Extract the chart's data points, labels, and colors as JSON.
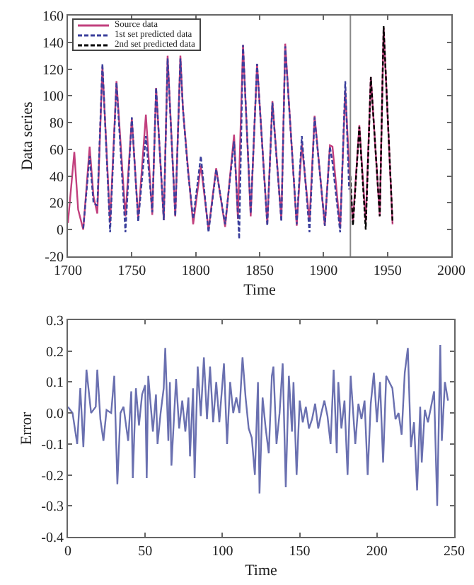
{
  "chart_data": [
    {
      "type": "line",
      "xlabel": "Time",
      "ylabel": "Data series",
      "xlim": [
        1700,
        2000
      ],
      "xticks": [
        1700,
        1750,
        1800,
        1850,
        1900,
        1950,
        2000
      ],
      "ylim": [
        -20,
        160
      ],
      "yticks": [
        -20,
        0,
        20,
        40,
        60,
        80,
        100,
        120,
        140,
        160
      ],
      "legend": "top left",
      "ref_lines": [
        {
          "axis": "x",
          "value": 1921,
          "color": "#888888"
        }
      ],
      "series": [
        {
          "name": "Source data",
          "color": "#c2407e",
          "line_style": "solid",
          "x": [
            1700,
            1705,
            1708,
            1712,
            1717,
            1720,
            1723,
            1727,
            1733,
            1738,
            1745,
            1750,
            1755,
            1761,
            1766,
            1769,
            1775,
            1778,
            1784,
            1788,
            1790,
            1794,
            1798,
            1804,
            1810,
            1816,
            1823,
            1830,
            1833,
            1837,
            1843,
            1848,
            1856,
            1860,
            1867,
            1870,
            1879,
            1883,
            1889,
            1893,
            1901,
            1905,
            1907,
            1913,
            1917,
            1921,
            1923,
            1928,
            1933,
            1937,
            1944,
            1947,
            1954
          ],
          "values": [
            5,
            58,
            15,
            0,
            62,
            25,
            12,
            122,
            5,
            111,
            10,
            83,
            8,
            86,
            11,
            106,
            7,
            130,
            10,
            130,
            90,
            45,
            4,
            48,
            0,
            46,
            2,
            71,
            8,
            138,
            10,
            124,
            4,
            96,
            7,
            139,
            3,
            64,
            6,
            85,
            3,
            63,
            62,
            1,
            104,
            30,
            6,
            78,
            6,
            114,
            10,
            151,
            4
          ]
        },
        {
          "name": "1st set predicted data",
          "color": "#3a3f9c",
          "line_style": "dashed",
          "x": [
            1712,
            1717,
            1720,
            1723,
            1727,
            1733,
            1738,
            1745,
            1750,
            1755,
            1761,
            1766,
            1769,
            1775,
            1778,
            1784,
            1788,
            1790,
            1794,
            1798,
            1804,
            1810,
            1816,
            1823,
            1830,
            1834,
            1837,
            1843,
            1848,
            1856,
            1860,
            1867,
            1870,
            1879,
            1883,
            1889,
            1893,
            1901,
            1905,
            1907,
            1913,
            1917,
            1920
          ],
          "values": [
            1,
            55,
            20,
            18,
            124,
            -2,
            110,
            -2,
            84,
            6,
            70,
            13,
            106,
            7,
            128,
            10,
            128,
            90,
            43,
            8,
            55,
            -2,
            45,
            4,
            66,
            -7,
            138,
            12,
            124,
            3,
            95,
            6,
            137,
            4,
            70,
            -2,
            84,
            3,
            62,
            50,
            -2,
            111,
            30
          ]
        },
        {
          "name": "2nd set predicted data",
          "color": "#000000",
          "line_style": "dashed",
          "x": [
            1921,
            1923,
            1928,
            1933,
            1937,
            1944,
            1947,
            1954
          ],
          "values": [
            40,
            3,
            77,
            0,
            114,
            10,
            152,
            5
          ]
        }
      ]
    },
    {
      "type": "line",
      "xlabel": "Time",
      "ylabel": "Error",
      "xlim": [
        0,
        250
      ],
      "xticks": [
        0,
        50,
        100,
        150,
        200,
        250
      ],
      "ylim": [
        -0.4,
        0.3
      ],
      "yticks": [
        {
          "value": -0.4,
          "label": "-0.4"
        },
        {
          "value": -0.3,
          "label": "-0.3"
        },
        {
          "value": -0.2,
          "label": "-0.2"
        },
        {
          "value": -0.1,
          "label": "-0.1"
        },
        {
          "value": 0,
          "label": "0.0"
        },
        {
          "value": 0.1,
          "label": "0.1"
        },
        {
          "value": 0.2,
          "label": "0.2"
        },
        {
          "value": 0.3,
          "label": "0.3"
        }
      ],
      "series": [
        {
          "color": "#6a70b0",
          "line_style": "solid",
          "x": [
            0,
            3,
            6,
            8,
            10,
            12,
            15,
            18,
            19,
            21,
            23,
            25,
            28,
            30,
            32,
            34,
            36,
            39,
            41,
            42,
            44,
            46,
            48,
            50,
            51,
            52,
            55,
            57,
            58,
            60,
            62,
            63,
            65,
            66,
            67,
            70,
            72,
            74,
            76,
            78,
            79,
            81,
            82,
            84,
            86,
            88,
            90,
            92,
            94,
            96,
            98,
            101,
            103,
            105,
            107,
            109,
            111,
            113,
            115,
            117,
            119,
            121,
            123,
            124,
            126,
            128,
            130,
            132,
            133,
            135,
            137,
            139,
            141,
            143,
            145,
            146,
            148,
            150,
            152,
            154,
            156,
            158,
            160,
            162,
            164,
            166,
            168,
            170,
            172,
            174,
            175,
            177,
            179,
            181,
            183,
            186,
            188,
            190,
            192,
            194,
            196,
            198,
            200,
            202,
            204,
            206,
            208,
            210,
            212,
            214,
            216,
            218,
            220,
            222,
            224,
            226,
            228,
            229,
            231,
            233,
            235,
            237,
            239,
            241,
            242,
            244,
            246
          ],
          "values": [
            0.02,
            0.0,
            -0.1,
            0.08,
            -0.11,
            0.14,
            0.0,
            0.02,
            0.14,
            -0.02,
            -0.09,
            0.01,
            0.0,
            0.12,
            -0.23,
            0.0,
            0.02,
            -0.09,
            0.07,
            -0.21,
            0.08,
            -0.04,
            0.06,
            0.09,
            -0.21,
            0.12,
            -0.06,
            0.06,
            -0.1,
            0.0,
            0.08,
            0.21,
            -0.09,
            0.1,
            -0.17,
            0.11,
            -0.05,
            0.04,
            -0.06,
            0.05,
            -0.14,
            0.08,
            -0.21,
            0.15,
            -0.01,
            0.18,
            -0.02,
            0.15,
            -0.03,
            0.1,
            -0.03,
            0.16,
            -0.1,
            0.1,
            0.0,
            0.05,
            0.0,
            0.18,
            0.05,
            -0.05,
            -0.08,
            -0.2,
            0.1,
            -0.26,
            0.05,
            -0.05,
            -0.13,
            0.12,
            0.15,
            -0.1,
            0.0,
            0.16,
            -0.24,
            0.12,
            -0.06,
            0.1,
            -0.2,
            0.04,
            -0.03,
            0.02,
            -0.05,
            -0.02,
            0.03,
            -0.05,
            0.0,
            0.04,
            -0.01,
            -0.1,
            0.14,
            -0.13,
            0.1,
            -0.05,
            0.04,
            -0.2,
            0.12,
            -0.1,
            0.03,
            -0.02,
            0.04,
            -0.2,
            0.03,
            0.13,
            -0.03,
            0.1,
            -0.16,
            0.12,
            0.1,
            0.08,
            -0.02,
            0.0,
            -0.07,
            0.13,
            0.21,
            -0.11,
            -0.03,
            -0.25,
            0.02,
            -0.16,
            0.01,
            -0.03,
            0.02,
            0.07,
            -0.3,
            0.22,
            -0.09,
            0.1,
            0.04
          ]
        }
      ]
    }
  ]
}
